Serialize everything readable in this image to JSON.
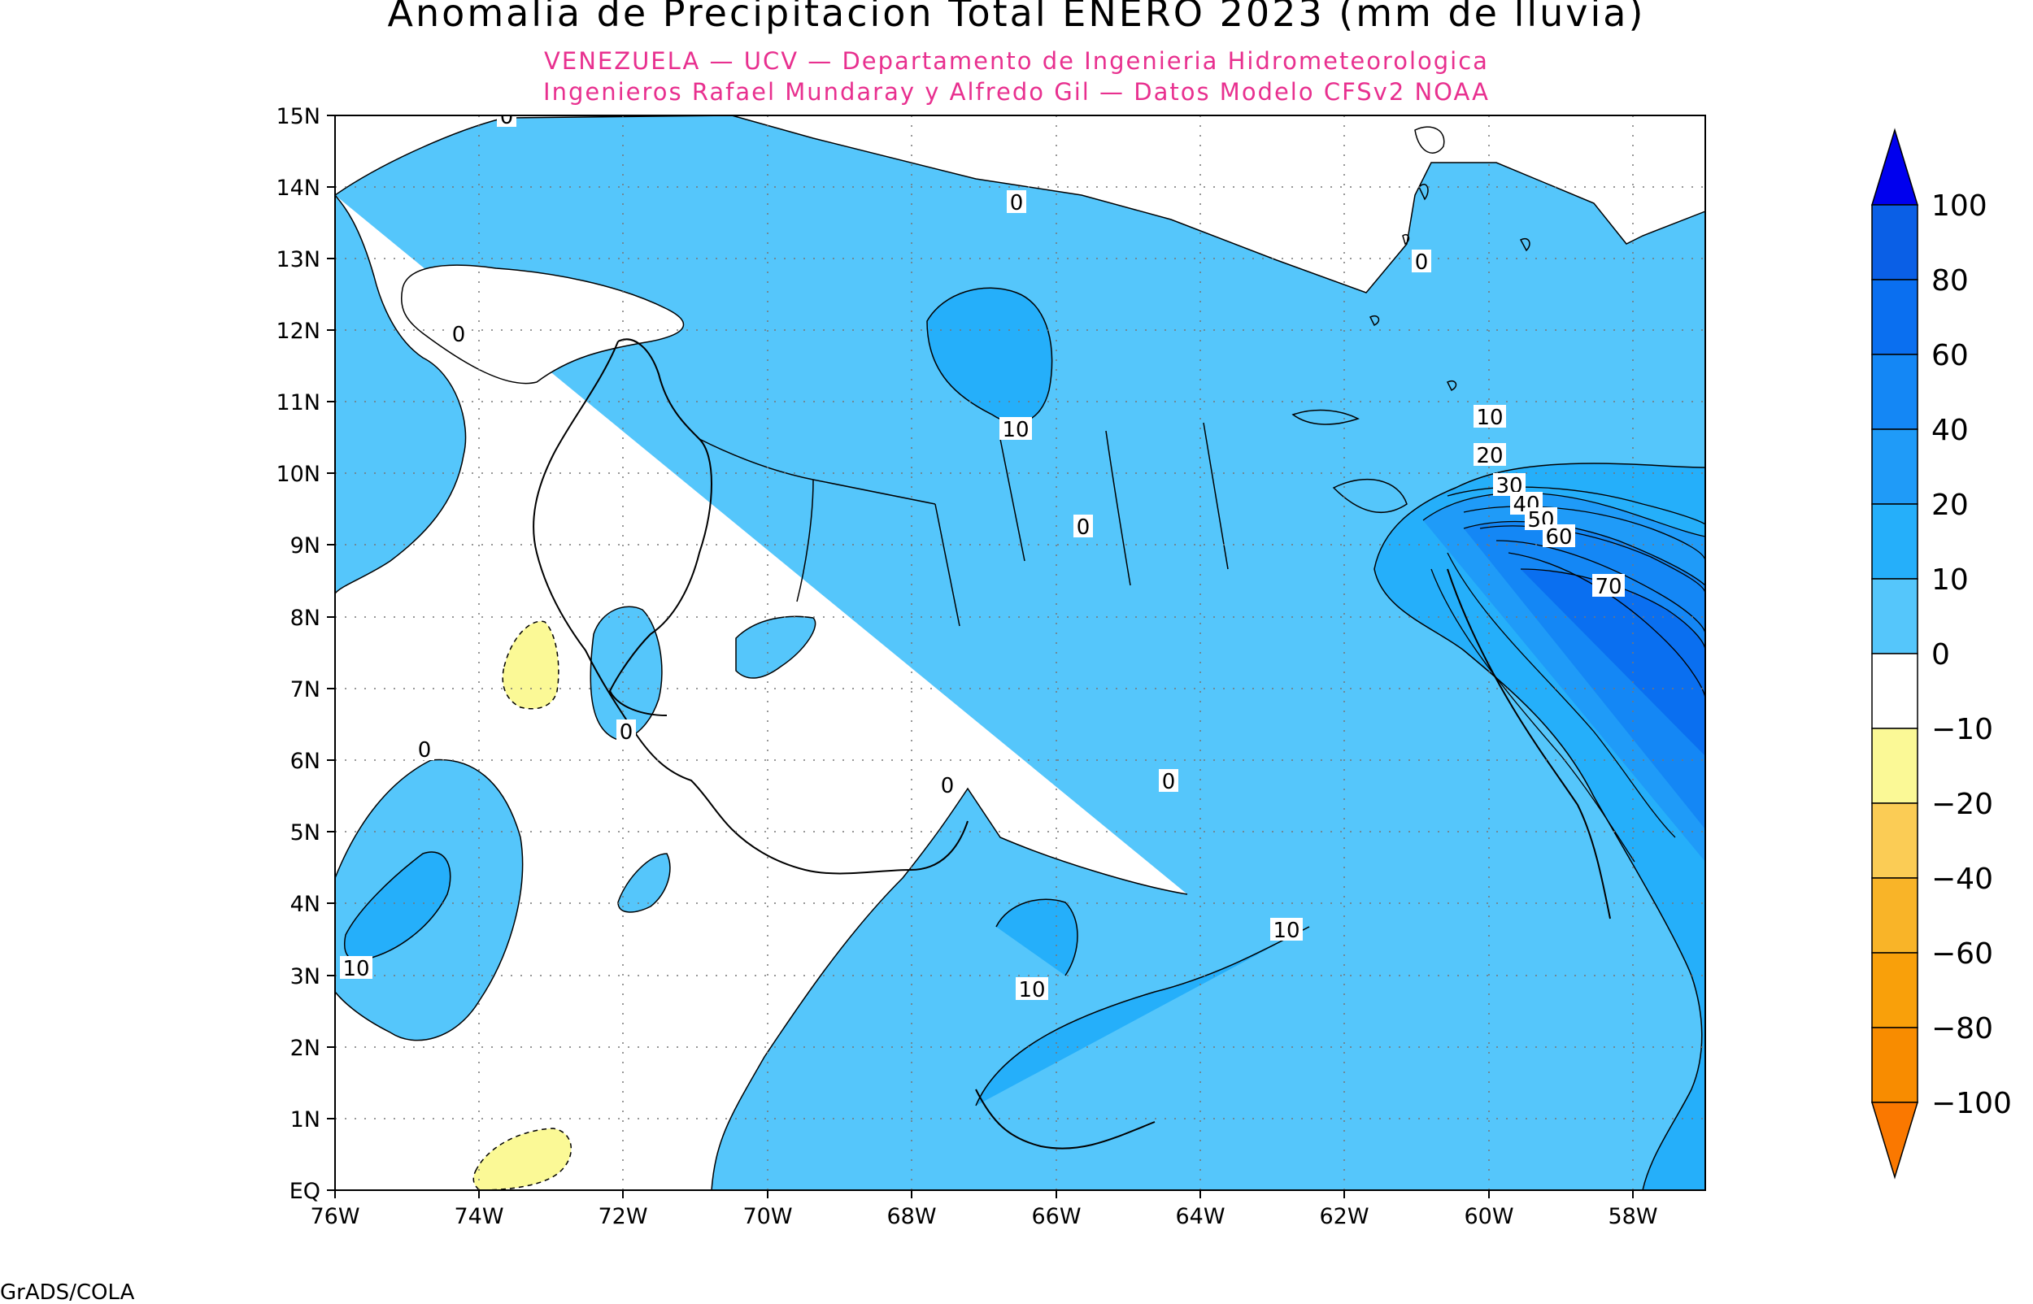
{
  "title": "Anomalia de Precipitacion Total ENERO 2023 (mm de lluvia)",
  "subtitle_line1": "VENEZUELA — UCV — Departamento de Ingenieria Hidrometeorologica",
  "subtitle_line2": "Ingenieros Rafael Mundaray y Alfredo Gil — Datos Modelo CFSv2 NOAA",
  "credit": "GrADS/COLA",
  "colors": {
    "subtitle": "#e8308f",
    "fill_0_10": "#55c6fb",
    "fill_10_20": "#25affa",
    "fill_60_80": "#0a6ff0",
    "fill_neg": "#fbf996",
    "ocean_background": "#ffffff"
  },
  "map": {
    "lon_ticks": [
      "76W",
      "74W",
      "72W",
      "70W",
      "68W",
      "66W",
      "64W",
      "62W",
      "60W",
      "58W"
    ],
    "lat_ticks": [
      "EQ",
      "1N",
      "2N",
      "3N",
      "4N",
      "5N",
      "6N",
      "7N",
      "8N",
      "9N",
      "10N",
      "11N",
      "12N",
      "13N",
      "14N",
      "15N"
    ],
    "contour_labels": [
      {
        "id": "a",
        "text": "0"
      },
      {
        "id": "b",
        "text": "0"
      },
      {
        "id": "c",
        "text": "0"
      },
      {
        "id": "d",
        "text": "0"
      },
      {
        "id": "e",
        "text": "10"
      },
      {
        "id": "f",
        "text": "0"
      },
      {
        "id": "g",
        "text": "0"
      },
      {
        "id": "h",
        "text": "0"
      },
      {
        "id": "i",
        "text": "0"
      },
      {
        "id": "j",
        "text": "0"
      },
      {
        "id": "k",
        "text": "10"
      },
      {
        "id": "l",
        "text": "10"
      },
      {
        "id": "m",
        "text": "10"
      },
      {
        "id": "n",
        "text": "10"
      },
      {
        "id": "o",
        "text": "20"
      },
      {
        "id": "p",
        "text": "30"
      },
      {
        "id": "q",
        "text": "40"
      },
      {
        "id": "r",
        "text": "50"
      },
      {
        "id": "s",
        "text": "60"
      },
      {
        "id": "t",
        "text": "70"
      }
    ]
  },
  "colorbar": {
    "labels": [
      "100",
      "80",
      "60",
      "40",
      "20",
      "10",
      "0",
      "−10",
      "−20",
      "−40",
      "−60",
      "−80",
      "−100"
    ],
    "colors": [
      "#0000ee",
      "#0a5fe6",
      "#0a6ff0",
      "#1487f5",
      "#1f9bf8",
      "#25affa",
      "#55c6fb",
      "#ffffff",
      "#fbf996",
      "#fbcc55",
      "#f9b428",
      "#f9a00a",
      "#f88c00",
      "#fa7800"
    ]
  }
}
